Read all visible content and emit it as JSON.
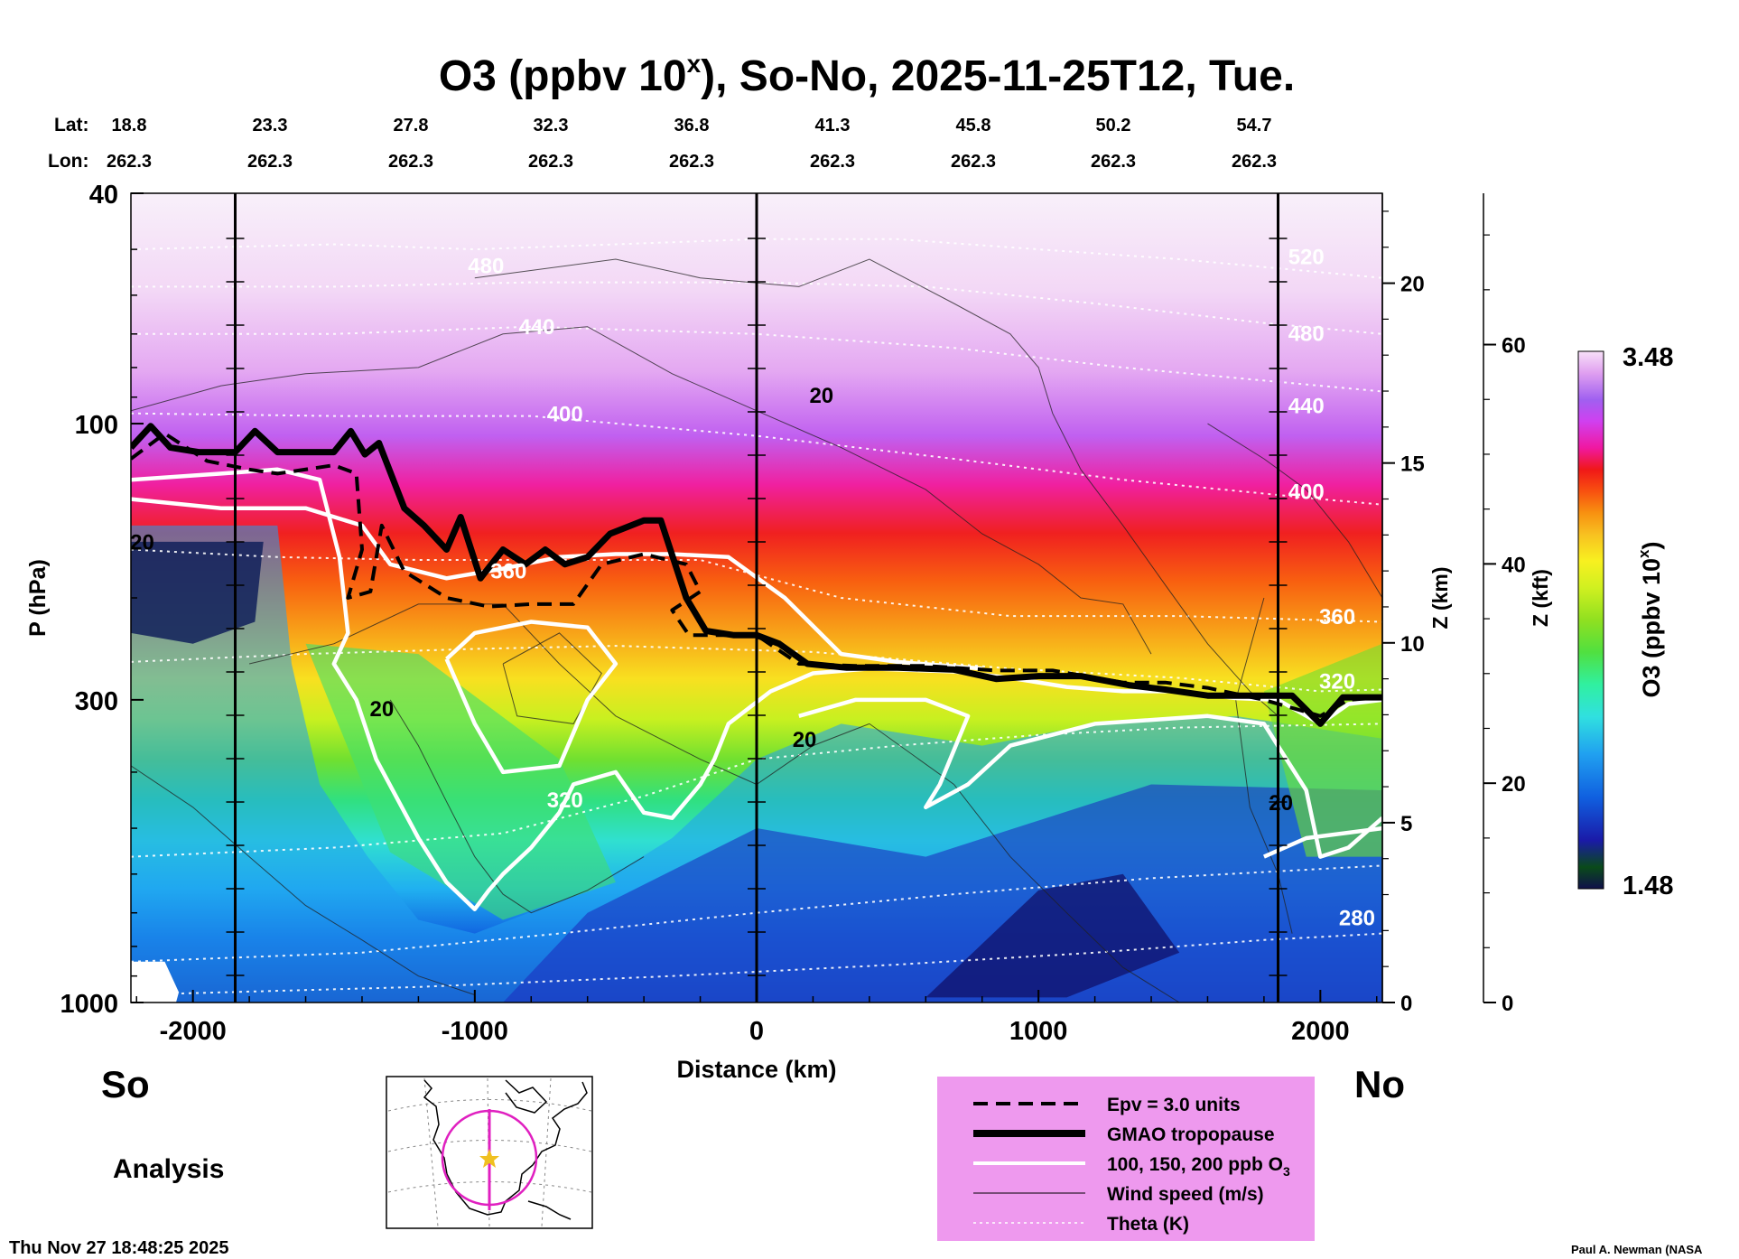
{
  "chart_data": {
    "type": "heatmap",
    "title": "O3 (ppbv 10",
    "title_superscript": "x",
    "title_suffix": "), So-No, 2025-11-25T12, Tue.",
    "xlabel": "Distance (km)",
    "ylabel": "P (hPa)",
    "y2label": "Z (km)",
    "y3label": "Z (kft)",
    "xlim": [
      -2220,
      2220
    ],
    "ylim": [
      1000,
      40
    ],
    "y_scale": "log",
    "x_ticks": [
      -2000,
      -1000,
      0,
      1000,
      2000
    ],
    "x_tick_labels": [
      "-2000",
      "-1000",
      "0",
      "1000",
      "2000"
    ],
    "y_ticks": [
      40,
      100,
      300,
      1000
    ],
    "y_tick_labels": [
      "40",
      "100",
      "300",
      "1000"
    ],
    "z_km_ticks": [
      0,
      5,
      10,
      15,
      20
    ],
    "z_km_tick_labels": [
      "0",
      "5",
      "10",
      "15",
      "20"
    ],
    "z_kft_ticks": [
      0,
      20,
      40,
      60
    ],
    "z_kft_tick_labels": [
      "0",
      "20",
      "40",
      "60"
    ],
    "lat_row_label": "Lat:",
    "lon_row_label": "Lon:",
    "lat_values": [
      "18.8",
      "23.3",
      "27.8",
      "32.3",
      "36.8",
      "41.3",
      "45.8",
      "50.2",
      "54.7"
    ],
    "lon_values": [
      "262.3",
      "262.3",
      "262.3",
      "262.3",
      "262.3",
      "262.3",
      "262.3",
      "262.3",
      "262.3"
    ],
    "vertical_lines_km": [
      -1850,
      0,
      1850
    ],
    "colorbar": {
      "label": "O3 (ppbv 10",
      "label_superscript": "x",
      "label_suffix": ")",
      "min_label": "1.48",
      "max_label": "3.48",
      "min": 1.48,
      "max": 3.48,
      "colors": [
        "#10104a",
        "#0a4a1a",
        "#1a1aa8",
        "#1060e0",
        "#20a0f0",
        "#30e0e0",
        "#30f0a0",
        "#50e040",
        "#90e020",
        "#d0f020",
        "#f8f020",
        "#f8c020",
        "#f89010",
        "#f85010",
        "#f01818",
        "#f018a0",
        "#d040f0",
        "#a060f0",
        "#e0a0f0",
        "#f8e0f8"
      ]
    },
    "tropopause_km": [
      [
        -2220,
        110
      ],
      [
        -2150,
        101
      ],
      [
        -2080,
        110
      ],
      [
        -1980,
        112
      ],
      [
        -1850,
        112
      ],
      [
        -1780,
        103
      ],
      [
        -1700,
        112
      ],
      [
        -1500,
        112
      ],
      [
        -1440,
        103
      ],
      [
        -1390,
        113
      ],
      [
        -1340,
        108
      ],
      [
        -1250,
        140
      ],
      [
        -1180,
        150
      ],
      [
        -1100,
        165
      ],
      [
        -1050,
        145
      ],
      [
        -980,
        185
      ],
      [
        -900,
        165
      ],
      [
        -820,
        175
      ],
      [
        -750,
        165
      ],
      [
        -680,
        175
      ],
      [
        -600,
        170
      ],
      [
        -520,
        155
      ],
      [
        -400,
        147
      ],
      [
        -340,
        147
      ],
      [
        -250,
        200
      ],
      [
        -180,
        228
      ],
      [
        -80,
        232
      ],
      [
        0,
        232
      ],
      [
        80,
        240
      ],
      [
        180,
        260
      ],
      [
        320,
        264
      ],
      [
        500,
        264
      ],
      [
        700,
        266
      ],
      [
        850,
        276
      ],
      [
        1000,
        273
      ],
      [
        1150,
        273
      ],
      [
        1320,
        283
      ],
      [
        1450,
        288
      ],
      [
        1600,
        295
      ],
      [
        1800,
        295
      ],
      [
        1900,
        295
      ],
      [
        2000,
        330
      ],
      [
        2080,
        297
      ],
      [
        2220,
        297
      ]
    ],
    "epv_km": [
      [
        -2220,
        115
      ],
      [
        -2100,
        104
      ],
      [
        -1950,
        116
      ],
      [
        -1800,
        120
      ],
      [
        -1700,
        122
      ],
      [
        -1500,
        118
      ],
      [
        -1420,
        122
      ],
      [
        -1400,
        165
      ],
      [
        -1450,
        200
      ],
      [
        -1370,
        195
      ],
      [
        -1330,
        150
      ],
      [
        -1250,
        180
      ],
      [
        -1100,
        200
      ],
      [
        -950,
        207
      ],
      [
        -800,
        205
      ],
      [
        -650,
        205
      ],
      [
        -550,
        175
      ],
      [
        -400,
        168
      ],
      [
        -250,
        175
      ],
      [
        -200,
        195
      ],
      [
        -300,
        210
      ],
      [
        -240,
        232
      ],
      [
        -150,
        232
      ],
      [
        0,
        232
      ],
      [
        150,
        260
      ],
      [
        350,
        262
      ],
      [
        600,
        262
      ],
      [
        850,
        267
      ],
      [
        1050,
        267
      ],
      [
        1300,
        280
      ],
      [
        1450,
        280
      ],
      [
        1600,
        286
      ],
      [
        1800,
        300
      ],
      [
        2000,
        320
      ],
      [
        2100,
        300
      ],
      [
        2220,
        297
      ]
    ],
    "theta_labels": [
      {
        "x": -960,
        "p": 55,
        "value": "480"
      },
      {
        "x": -780,
        "p": 70,
        "value": "440"
      },
      {
        "x": -680,
        "p": 99,
        "value": "400"
      },
      {
        "x": -880,
        "p": 185,
        "value": "360"
      },
      {
        "x": -680,
        "p": 460,
        "value": "320"
      },
      {
        "x": 1950,
        "p": 53,
        "value": "520"
      },
      {
        "x": 1950,
        "p": 72,
        "value": "480"
      },
      {
        "x": 1950,
        "p": 96,
        "value": "440"
      },
      {
        "x": 1950,
        "p": 135,
        "value": "400"
      },
      {
        "x": 2060,
        "p": 222,
        "value": "360"
      },
      {
        "x": 2060,
        "p": 287,
        "value": "320"
      },
      {
        "x": 2130,
        "p": 736,
        "value": "280"
      }
    ],
    "wind_labels": [
      {
        "x": -2180,
        "p": 165,
        "value": "20"
      },
      {
        "x": -1330,
        "p": 320,
        "value": "20"
      },
      {
        "x": 230,
        "p": 92,
        "value": "20"
      },
      {
        "x": 170,
        "p": 362,
        "value": "20"
      },
      {
        "x": 1860,
        "p": 465,
        "value": "20"
      }
    ]
  },
  "bottom_left": {
    "south_label": "So",
    "north_label": "No",
    "analysis_label": "Analysis",
    "timestamp": "Thu Nov 27 18:48:25 2025",
    "credit": "Paul A. Newman (NASA"
  },
  "legend": {
    "entries": [
      {
        "label": "Epv = 3.0 units",
        "style": "dashed"
      },
      {
        "label": "GMAO tropopause",
        "style": "thick"
      },
      {
        "label": "100, 150, 200 ppb O",
        "sub": "3",
        "style": "white"
      },
      {
        "label": "Wind speed (m/s)",
        "style": "thin"
      },
      {
        "label": "Theta (K)",
        "style": "dotted"
      }
    ],
    "background": "#ee99ee"
  }
}
